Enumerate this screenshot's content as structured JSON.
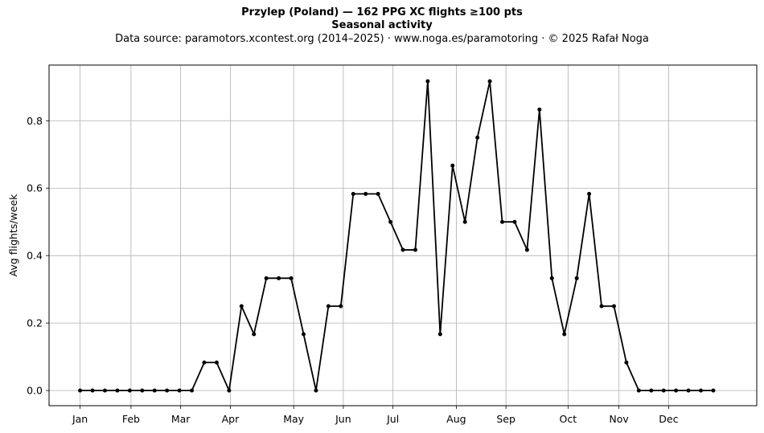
{
  "chart_data": {
    "type": "line",
    "title": "Przylep (Poland)  —  162 PPG XC flights ≥100 pts",
    "subtitle": "Seasonal activity",
    "source": "Data source: paramotors.xcontest.org (2014–2025)  ·  www.noga.es/paramotoring  ·  © 2025 Rafał Noga",
    "xlabel": "",
    "ylabel": "Avg flights/week",
    "ylim": [
      -0.045,
      0.965
    ],
    "xlim": [
      -2.5,
      54.5
    ],
    "yticks": [
      0.0,
      0.2,
      0.4,
      0.6,
      0.8
    ],
    "ytick_labels": [
      "0.0",
      "0.2",
      "0.4",
      "0.6",
      "0.8"
    ],
    "xticks": [
      {
        "label": "Jan",
        "week": 0
      },
      {
        "label": "Feb",
        "week": 4.1
      },
      {
        "label": "Mar",
        "week": 8.1
      },
      {
        "label": "Apr",
        "week": 12.1
      },
      {
        "label": "May",
        "week": 17.2
      },
      {
        "label": "Jun",
        "week": 21.2
      },
      {
        "label": "Jul",
        "week": 25.2
      },
      {
        "label": "Aug",
        "week": 30.3
      },
      {
        "label": "Sep",
        "week": 34.3
      },
      {
        "label": "Oct",
        "week": 39.3
      },
      {
        "label": "Nov",
        "week": 43.4
      },
      {
        "label": "Dec",
        "week": 47.4
      }
    ],
    "grid": true,
    "series": [
      {
        "color": "#000000",
        "x": [
          0,
          1,
          2,
          3,
          4,
          5,
          6,
          7,
          8,
          9,
          10,
          11,
          12,
          13,
          14,
          15,
          16,
          17,
          18,
          19,
          20,
          21,
          22,
          23,
          24,
          25,
          26,
          27,
          28,
          29,
          30,
          31,
          32,
          33,
          34,
          35,
          36,
          37,
          38,
          39,
          40,
          41,
          42,
          43,
          44,
          45,
          46,
          47,
          48,
          49,
          50,
          51
        ],
        "values": [
          0,
          0,
          0,
          0,
          0,
          0,
          0,
          0,
          0,
          0,
          0.083,
          0.083,
          0,
          0.25,
          0.167,
          0.333,
          0.333,
          0.333,
          0.167,
          0,
          0.25,
          0.25,
          0.583,
          0.583,
          0.583,
          0.5,
          0.417,
          0.417,
          0.917,
          0.167,
          0.667,
          0.5,
          0.75,
          0.917,
          0.5,
          0.5,
          0.417,
          0.833,
          0.333,
          0.167,
          0.333,
          0.583,
          0.25,
          0.25,
          0.083,
          0,
          0,
          0,
          0,
          0,
          0,
          0
        ]
      }
    ]
  }
}
